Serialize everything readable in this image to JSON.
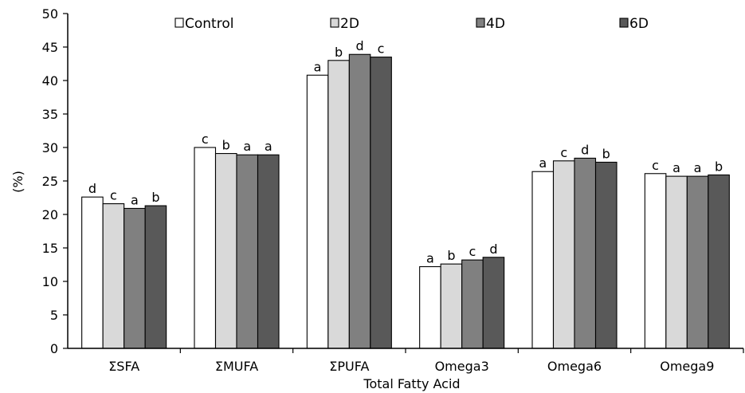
{
  "chart_data": {
    "type": "bar",
    "title": "",
    "xlabel": "Total Fatty Acid",
    "ylabel": "(%)",
    "ylim": [
      0,
      50
    ],
    "yticks": [
      0,
      5,
      10,
      15,
      20,
      25,
      30,
      35,
      40,
      45,
      50
    ],
    "grid": false,
    "legend_position": "top",
    "categories": [
      "ΣSFA",
      "ΣMUFA",
      "ΣPUFA",
      "Omega3",
      "Omega6",
      "Omega9"
    ],
    "series": [
      {
        "name": "Control",
        "color": "#ffffff",
        "values": [
          22.6,
          30.0,
          40.8,
          12.2,
          26.4,
          26.1
        ],
        "labels": [
          "d",
          "c",
          "a",
          "a",
          "a",
          "c"
        ]
      },
      {
        "name": "2D",
        "color": "#d9d9d9",
        "values": [
          21.6,
          29.1,
          43.0,
          12.6,
          28.0,
          25.7
        ],
        "labels": [
          "c",
          "b",
          "b",
          "b",
          "c",
          "a"
        ]
      },
      {
        "name": "4D",
        "color": "#808080",
        "values": [
          20.9,
          28.9,
          43.9,
          13.2,
          28.4,
          25.7
        ],
        "labels": [
          "a",
          "a",
          "d",
          "c",
          "d",
          "a"
        ]
      },
      {
        "name": "6D",
        "color": "#595959",
        "values": [
          21.3,
          28.9,
          43.5,
          13.6,
          27.8,
          25.9
        ],
        "labels": [
          "b",
          "a",
          "c",
          "d",
          "b",
          "b"
        ]
      }
    ]
  }
}
